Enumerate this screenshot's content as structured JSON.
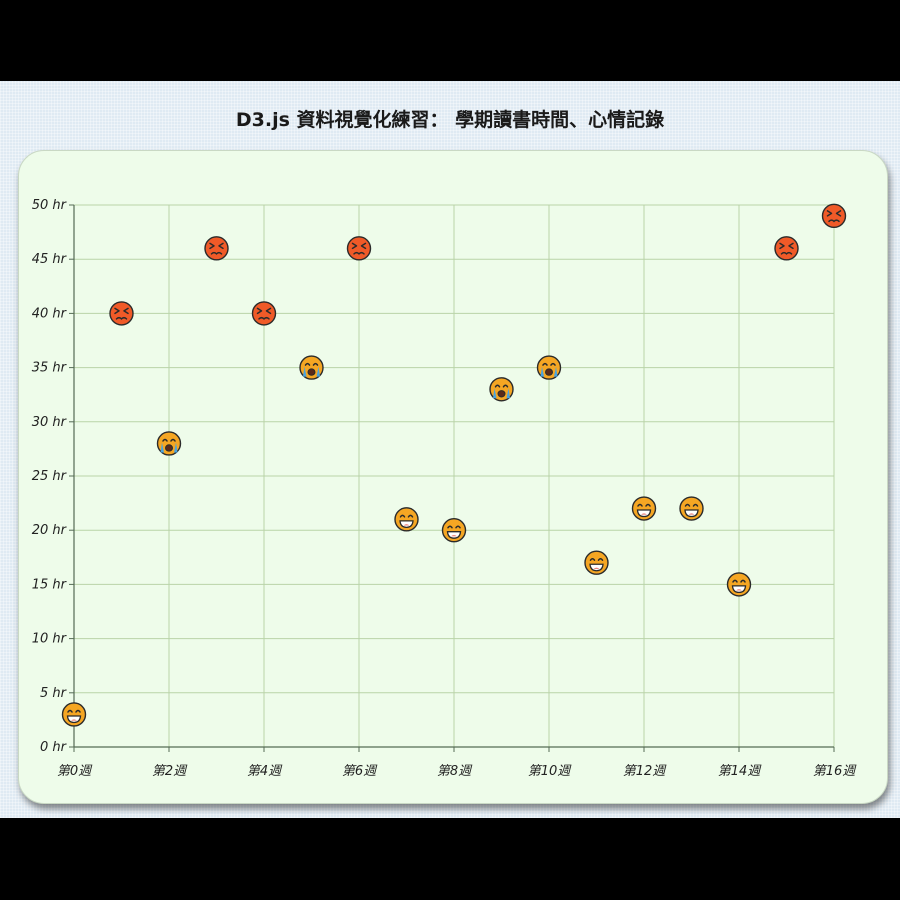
{
  "title": "D3.js 資料視覺化練習： 學期讀書時間、心情記錄",
  "colors": {
    "background": "#dfeaf3",
    "card": "#eefcea",
    "grid": "#b9d3a8",
    "axis": "#556b55",
    "happy": "#f5a623",
    "crying": "#f5a623",
    "angry": "#f05a28"
  },
  "chart_data": {
    "type": "scatter",
    "title": "D3.js 資料視覺化練習： 學期讀書時間、心情記錄",
    "xlabel": "",
    "ylabel": "",
    "xlim": [
      0,
      16
    ],
    "ylim": [
      0,
      50
    ],
    "x_ticks": [
      {
        "value": 0,
        "label": "第0週"
      },
      {
        "value": 2,
        "label": "第2週"
      },
      {
        "value": 4,
        "label": "第4週"
      },
      {
        "value": 6,
        "label": "第6週"
      },
      {
        "value": 8,
        "label": "第8週"
      },
      {
        "value": 10,
        "label": "第10週"
      },
      {
        "value": 12,
        "label": "第12週"
      },
      {
        "value": 14,
        "label": "第14週"
      },
      {
        "value": 16,
        "label": "第16週"
      }
    ],
    "y_ticks": [
      {
        "value": 0,
        "label": "0 hr"
      },
      {
        "value": 5,
        "label": "5 hr"
      },
      {
        "value": 10,
        "label": "10 hr"
      },
      {
        "value": 15,
        "label": "15 hr"
      },
      {
        "value": 20,
        "label": "20 hr"
      },
      {
        "value": 25,
        "label": "25 hr"
      },
      {
        "value": 30,
        "label": "30 hr"
      },
      {
        "value": 35,
        "label": "35 hr"
      },
      {
        "value": 40,
        "label": "40 hr"
      },
      {
        "value": 45,
        "label": "45 hr"
      },
      {
        "value": 50,
        "label": "50 hr"
      }
    ],
    "grid": true,
    "points": [
      {
        "week": 0,
        "hours": 3,
        "mood": "happy"
      },
      {
        "week": 1,
        "hours": 40,
        "mood": "angry"
      },
      {
        "week": 2,
        "hours": 28,
        "mood": "crying"
      },
      {
        "week": 3,
        "hours": 46,
        "mood": "angry"
      },
      {
        "week": 4,
        "hours": 40,
        "mood": "angry"
      },
      {
        "week": 5,
        "hours": 35,
        "mood": "crying"
      },
      {
        "week": 6,
        "hours": 46,
        "mood": "angry"
      },
      {
        "week": 7,
        "hours": 21,
        "mood": "happy"
      },
      {
        "week": 8,
        "hours": 20,
        "mood": "happy"
      },
      {
        "week": 9,
        "hours": 33,
        "mood": "crying"
      },
      {
        "week": 10,
        "hours": 35,
        "mood": "crying"
      },
      {
        "week": 11,
        "hours": 17,
        "mood": "happy"
      },
      {
        "week": 12,
        "hours": 22,
        "mood": "happy"
      },
      {
        "week": 13,
        "hours": 22,
        "mood": "happy"
      },
      {
        "week": 14,
        "hours": 15,
        "mood": "happy"
      },
      {
        "week": 15,
        "hours": 46,
        "mood": "angry"
      },
      {
        "week": 16,
        "hours": 49,
        "mood": "angry"
      }
    ]
  }
}
